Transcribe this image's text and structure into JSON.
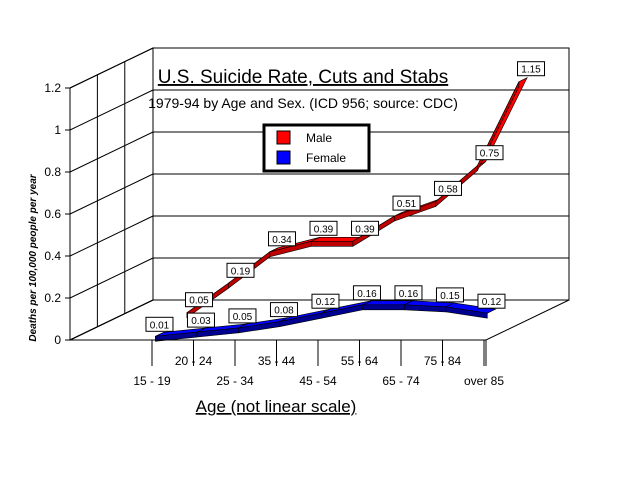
{
  "chart_data": {
    "type": "line",
    "title": "U.S. Suicide Rate, Cuts and Stabs",
    "subtitle": "1979-94 by Age and Sex.  (ICD 956; source: CDC)",
    "xlabel": "Age (not linear scale)",
    "ylabel": "Deaths per 100,000 people per year",
    "categories": [
      "15 - 19",
      "20 - 24",
      "25 - 34",
      "35 - 44",
      "45 - 54",
      "55 - 64",
      "65 - 74",
      "75 - 84",
      "over 85"
    ],
    "y_ticks": [
      "0",
      "0.2",
      "0.4",
      "0.6",
      "0.8",
      "1",
      "1.2"
    ],
    "ylim": [
      0,
      1.2
    ],
    "legend_position": "top-center",
    "grid": true,
    "series": [
      {
        "name": "Male",
        "color": "#ff0000",
        "values": [
          0.05,
          0.19,
          0.34,
          0.39,
          0.39,
          0.51,
          0.58,
          0.75,
          1.15
        ]
      },
      {
        "name": "Female",
        "color": "#0000ff",
        "values": [
          0.01,
          0.03,
          0.05,
          0.08,
          0.12,
          0.16,
          0.16,
          0.15,
          0.12
        ]
      }
    ]
  }
}
